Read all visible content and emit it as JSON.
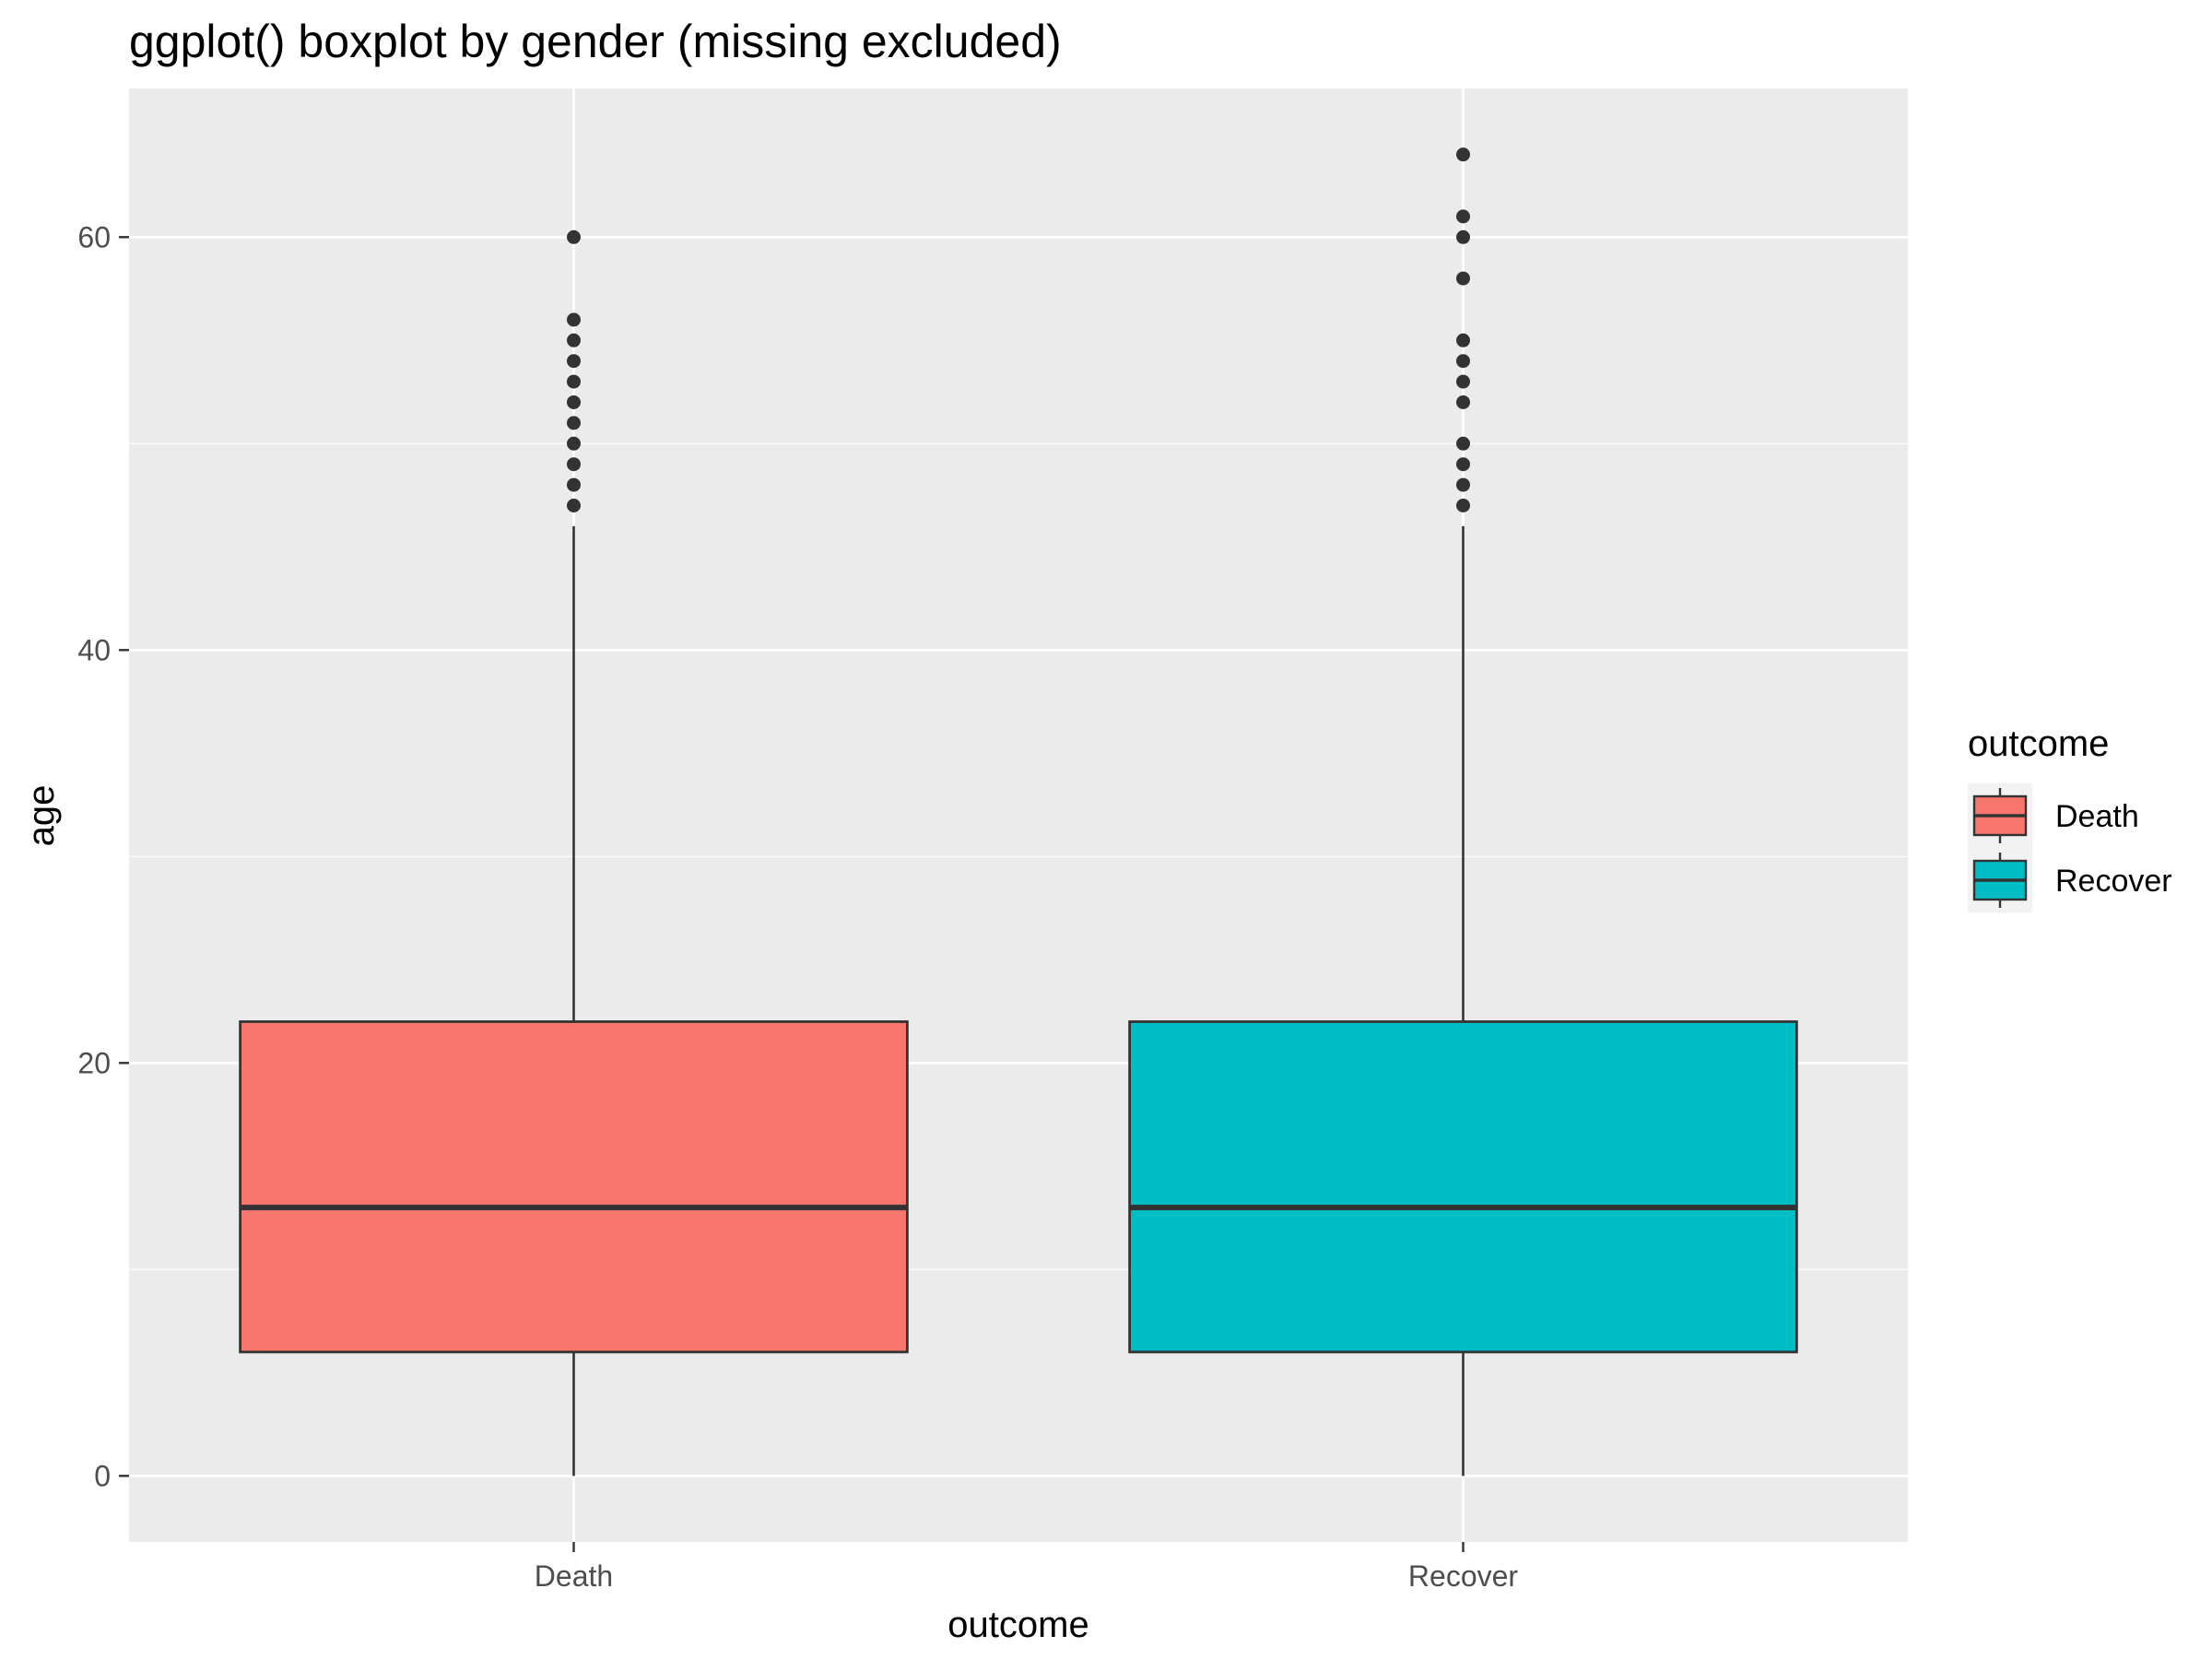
{
  "chart_data": {
    "type": "boxplot",
    "title": "ggplot() boxplot by gender (missing excluded)",
    "xlabel": "outcome",
    "ylabel": "age",
    "categories": [
      "Death",
      "Recover"
    ],
    "ylim": [
      -3.2,
      67.2
    ],
    "yticks": [
      0,
      20,
      40,
      60
    ],
    "grid": true,
    "panel_background": "#ebebeb",
    "grid_color": "#ffffff",
    "outline_color": "#333333",
    "legend": {
      "title": "outcome",
      "placement": "right",
      "entries": [
        {
          "label": "Death",
          "color": "#f8766d"
        },
        {
          "label": "Recover",
          "color": "#00bfc4"
        }
      ]
    },
    "boxes": [
      {
        "category": "Death",
        "color": "#f8766d",
        "whisker_low": 0,
        "q1": 6,
        "median": 13,
        "q3": 22,
        "whisker_high": 46,
        "outliers": [
          47,
          48,
          49,
          50,
          51,
          52,
          53,
          54,
          55,
          56,
          60
        ]
      },
      {
        "category": "Recover",
        "color": "#00bfc4",
        "whisker_low": 0,
        "q1": 6,
        "median": 13,
        "q3": 22,
        "whisker_high": 46,
        "outliers": [
          47,
          48,
          49,
          50,
          52,
          53,
          54,
          55,
          58,
          60,
          61,
          64
        ]
      }
    ]
  }
}
